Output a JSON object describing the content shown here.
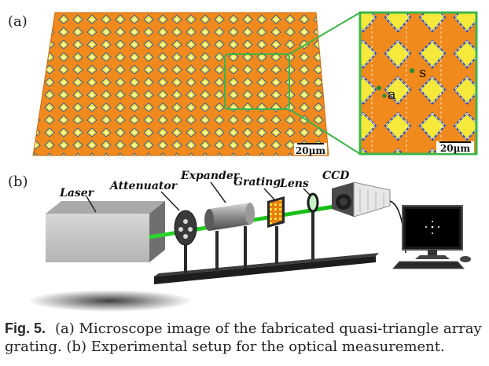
{
  "panel_a": {
    "label": "(a)",
    "scale_bar_main": "20µm",
    "scale_bar_zoom": "20µm",
    "zoom_marker_a": "a",
    "zoom_marker_s": "s"
  },
  "panel_b": {
    "label": "(b)",
    "components": {
      "laser": "Laser",
      "attenuator": "Attenuator",
      "expander": "Expander",
      "grating": "Grating",
      "lens": "Lens",
      "ccd": "CCD"
    }
  },
  "caption": {
    "figure_label": "Fig. 5.",
    "line1": "(a) Microscope image of the fabricated quasi-triangle array",
    "line2": "grating. (b) Experimental setup for the optical measurement."
  },
  "colors": {
    "grating_orange": "#f08a1c",
    "spot_yellow": "#f7e63a",
    "zoom_green": "#3cb54a",
    "beam_green": "#1fd41f"
  }
}
